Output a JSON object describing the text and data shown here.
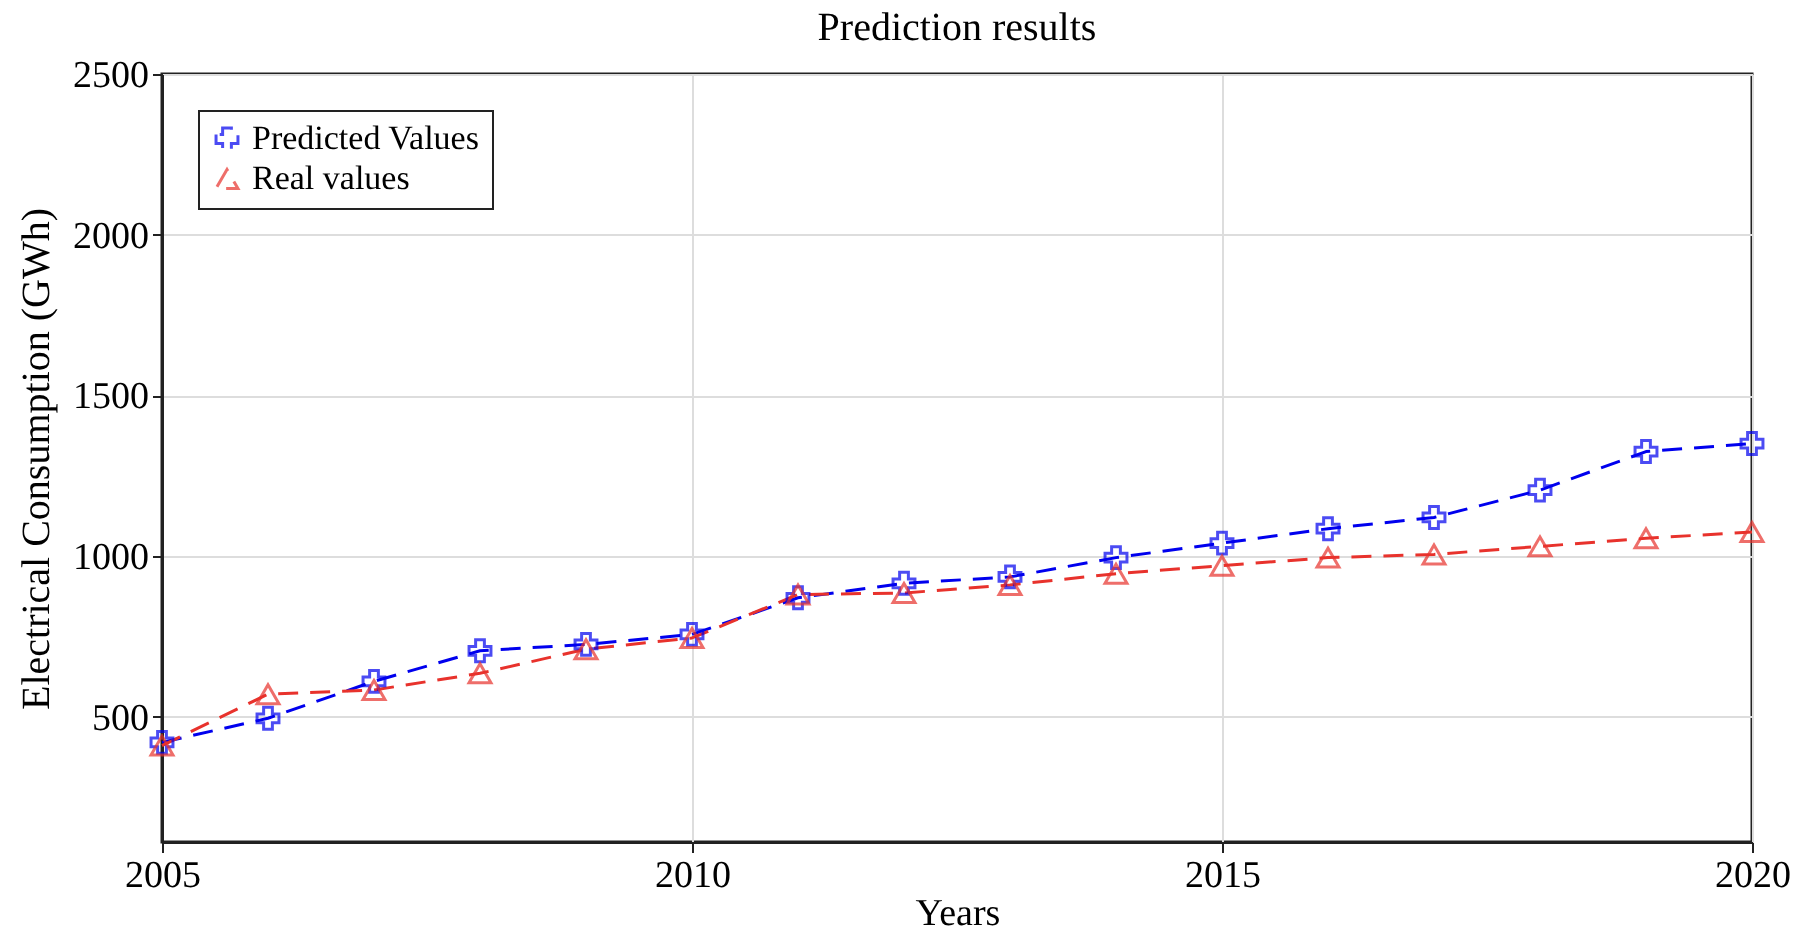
{
  "chart_data": {
    "type": "line",
    "title": "Prediction results",
    "xlabel": "Years",
    "ylabel": "Electrical Consumption (GWh)",
    "x": [
      2005,
      2006,
      2007,
      2008,
      2009,
      2010,
      2011,
      2012,
      2013,
      2014,
      2015,
      2016,
      2017,
      2018,
      2019,
      2020
    ],
    "series": [
      {
        "name": "Predicted Values",
        "color": "#0000ee",
        "marker": "cross",
        "line_style": "dashed",
        "values": [
          420,
          495,
          610,
          705,
          725,
          756,
          870,
          915,
          935,
          995,
          1040,
          1085,
          1120,
          1205,
          1325,
          1350
        ]
      },
      {
        "name": "Real values",
        "color": "#e8322c",
        "marker": "triangle",
        "line_style": "dashed",
        "values": [
          410,
          570,
          583,
          635,
          710,
          745,
          880,
          885,
          910,
          945,
          970,
          995,
          1005,
          1030,
          1055,
          1075
        ]
      }
    ],
    "xlim": [
      2005,
      2020
    ],
    "xticks": [
      2005,
      2010,
      2015,
      2020
    ],
    "ylim": [
      110,
      2500
    ],
    "yticks": [
      500,
      1000,
      1500,
      2000,
      2500
    ],
    "grid": true,
    "legend": "top left"
  }
}
